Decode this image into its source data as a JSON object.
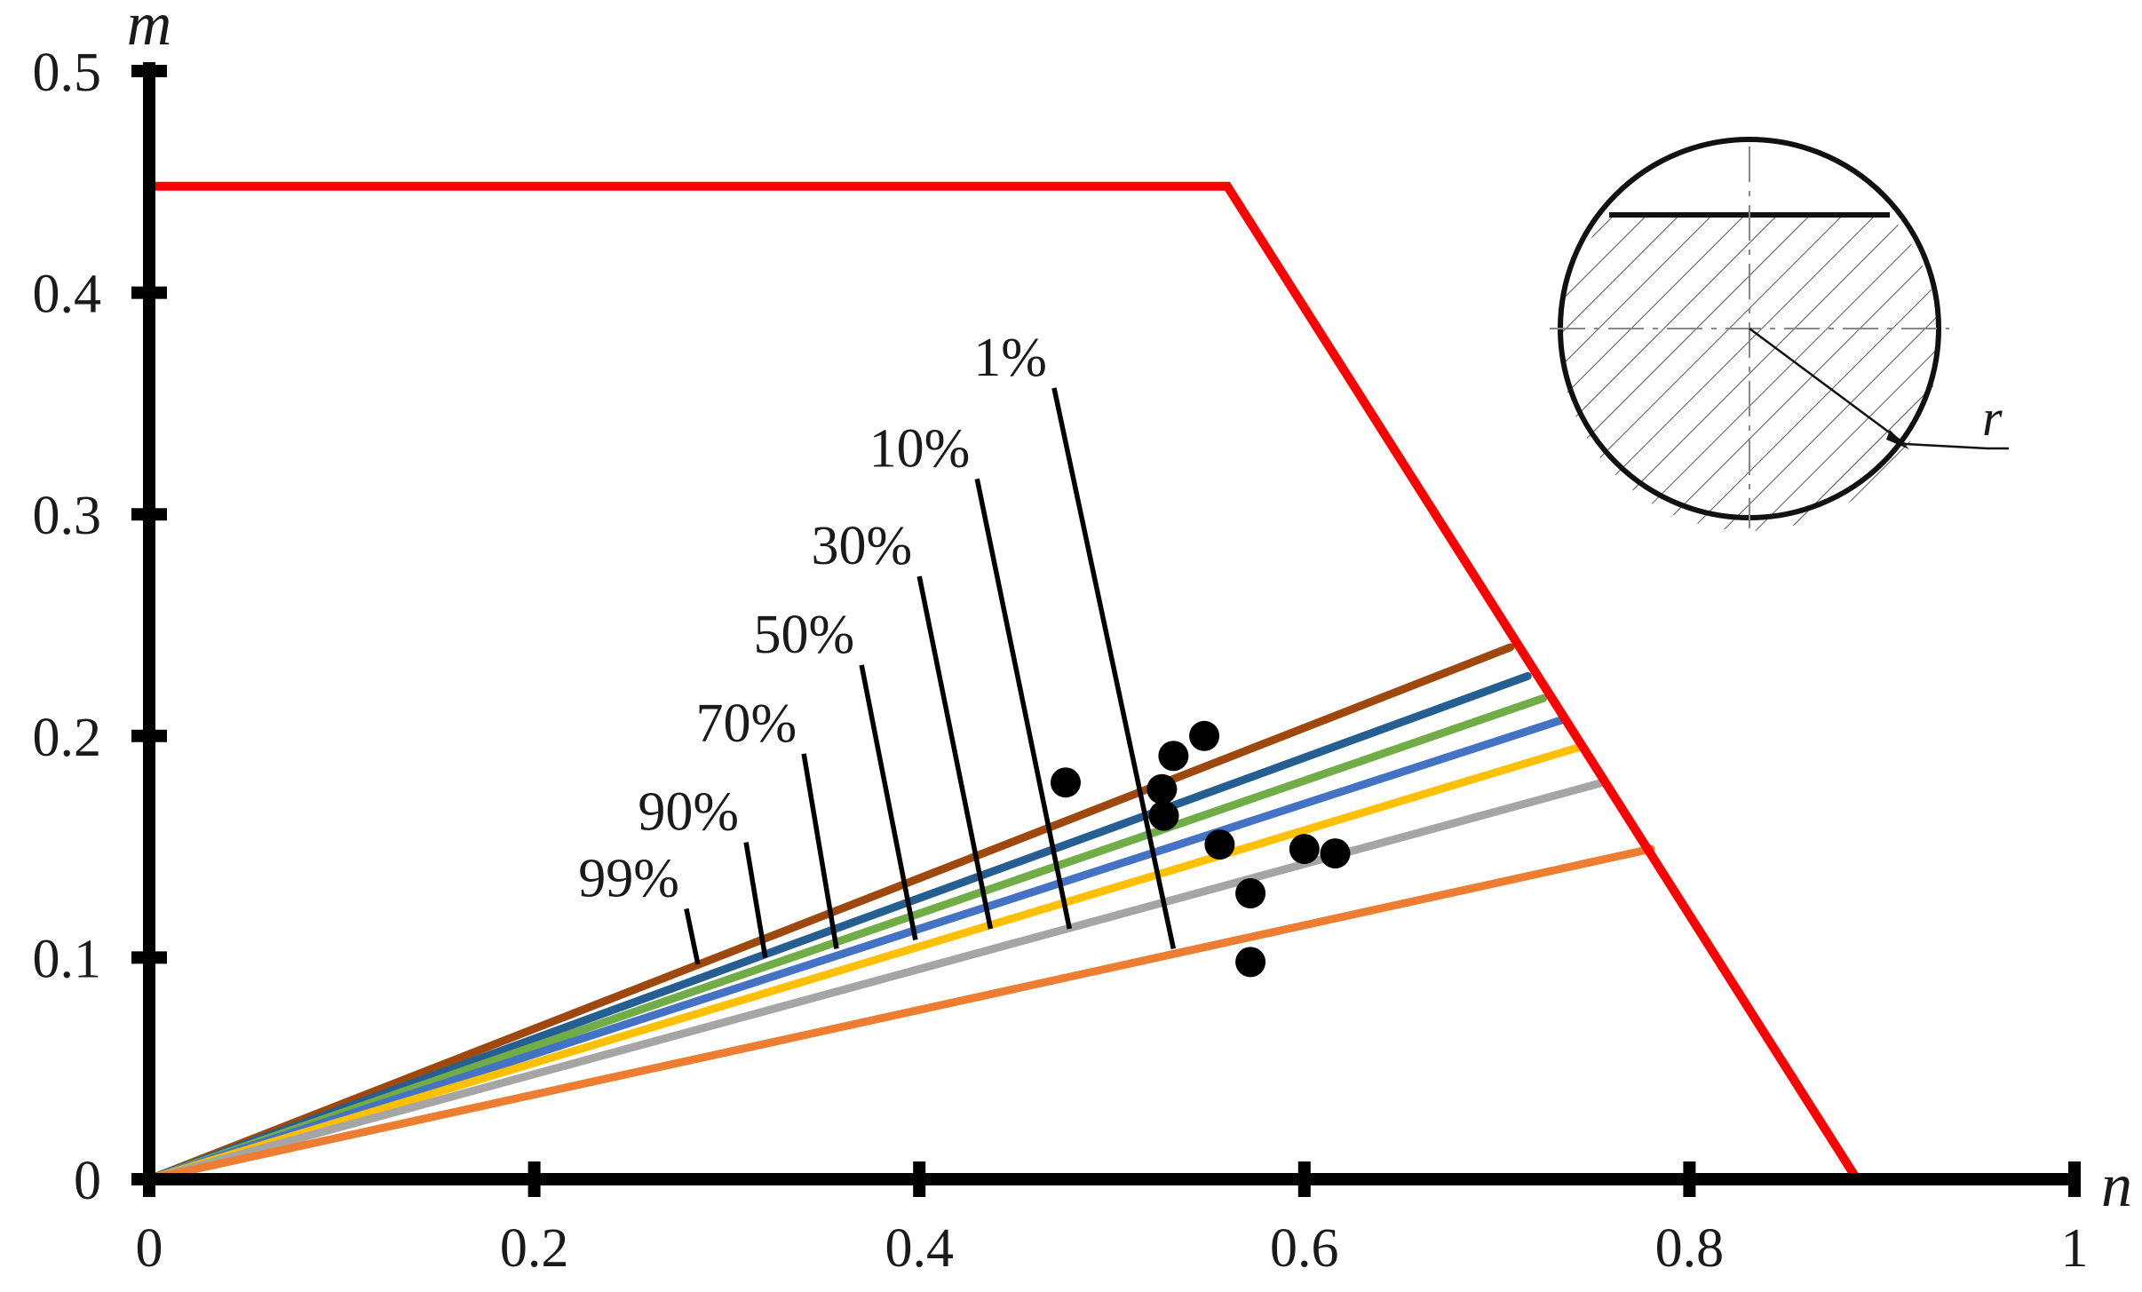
{
  "chart_data": {
    "type": "line",
    "xlabel": "n",
    "ylabel": "m",
    "xlim": [
      0,
      1
    ],
    "ylim": [
      0,
      0.5
    ],
    "xticks": [
      "0",
      "0.2",
      "0.4",
      "0.6",
      "0.8",
      "1"
    ],
    "yticks": [
      "0",
      "0.1",
      "0.2",
      "0.3",
      "0.4",
      "0.5"
    ],
    "boundary": {
      "color": "#ff0000",
      "points": [
        [
          0,
          0.448
        ],
        [
          0.56,
          0.448
        ],
        [
          0.887,
          0
        ]
      ]
    },
    "series": [
      {
        "label": "99%",
        "color": "#9e480e",
        "end": [
          0.707,
          0.24
        ],
        "pointer": [
          [
            0.279,
            0.122
          ],
          [
            0.285,
            0.097
          ]
        ]
      },
      {
        "label": "90%",
        "color": "#255e91",
        "end": [
          0.716,
          0.227
        ],
        "pointer": [
          [
            0.31,
            0.152
          ],
          [
            0.32,
            0.1
          ]
        ]
      },
      {
        "label": "70%",
        "color": "#70ad47",
        "end": [
          0.724,
          0.217
        ],
        "pointer": [
          [
            0.34,
            0.192
          ],
          [
            0.357,
            0.104
          ]
        ]
      },
      {
        "label": "50%",
        "color": "#4472c4",
        "end": [
          0.733,
          0.207
        ],
        "pointer": [
          [
            0.37,
            0.232
          ],
          [
            0.398,
            0.108
          ]
        ]
      },
      {
        "label": "30%",
        "color": "#ffc000",
        "end": [
          0.743,
          0.195
        ],
        "pointer": [
          [
            0.4,
            0.272
          ],
          [
            0.437,
            0.113
          ]
        ]
      },
      {
        "label": "10%",
        "color": "#a5a5a5",
        "end": [
          0.755,
          0.179
        ],
        "pointer": [
          [
            0.43,
            0.316
          ],
          [
            0.478,
            0.113
          ]
        ]
      },
      {
        "label": "1%",
        "color": "#ed7d31",
        "end": [
          0.78,
          0.149
        ],
        "pointer": [
          [
            0.47,
            0.357
          ],
          [
            0.532,
            0.104
          ]
        ]
      }
    ],
    "points": [
      [
        0.476,
        0.179
      ],
      [
        0.532,
        0.191
      ],
      [
        0.548,
        0.2
      ],
      [
        0.526,
        0.176
      ],
      [
        0.527,
        0.164
      ],
      [
        0.556,
        0.151
      ],
      [
        0.6,
        0.149
      ],
      [
        0.616,
        0.147
      ],
      [
        0.572,
        0.129
      ],
      [
        0.572,
        0.098
      ]
    ],
    "inset": {
      "label": "r",
      "description_icon": "circle-cross-section-hatched"
    }
  }
}
